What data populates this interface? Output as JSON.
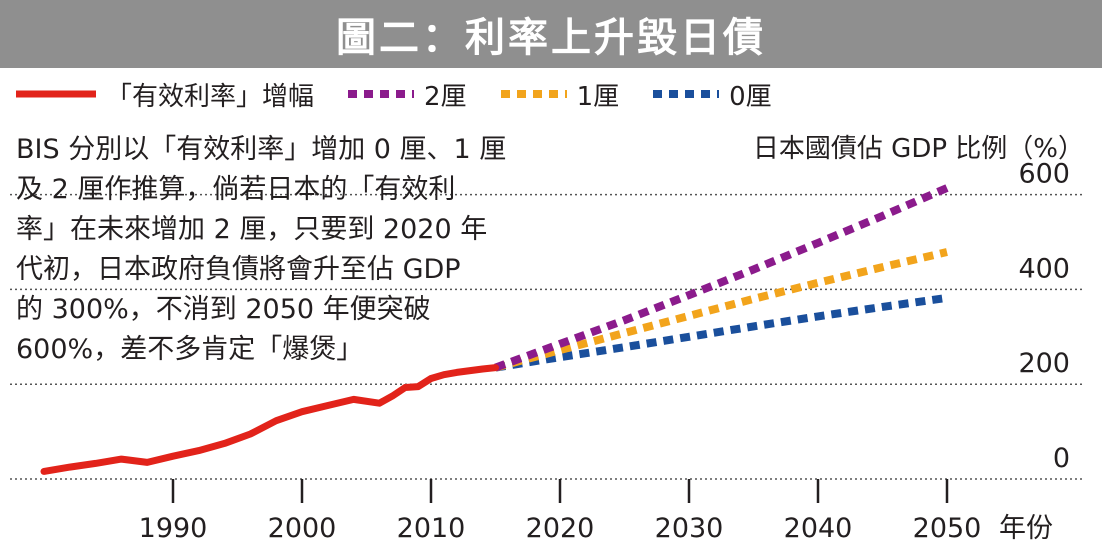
{
  "chart_data": {
    "type": "line",
    "title": "圖二：利率上升毀日債",
    "ylabel": "日本國債佔 GDP 比例（%）",
    "xlabel": "年份",
    "xlim": [
      1980,
      2050
    ],
    "ylim": [
      0,
      600
    ],
    "x_ticks": [
      1990,
      2000,
      2010,
      2020,
      2030,
      2040,
      2050
    ],
    "x_tick_labels": [
      "1990",
      "2000",
      "2010",
      "2020",
      "2030",
      "2040",
      "2050"
    ],
    "y_ticks": [
      0,
      200,
      400,
      600
    ],
    "y_tick_labels": [
      "0",
      "200",
      "400",
      "600"
    ],
    "series": [
      {
        "name": "「有效利率」增幅",
        "color": "#e2231a",
        "style": "solid",
        "x": [
          1980,
          1982,
          1984,
          1986,
          1988,
          1990,
          1992,
          1994,
          1996,
          1998,
          2000,
          2002,
          2004,
          2006,
          2007,
          2008,
          2009,
          2010,
          2011,
          2012,
          2014,
          2015
        ],
        "values": [
          16,
          25,
          33,
          42,
          35,
          48,
          60,
          75,
          95,
          123,
          142,
          155,
          168,
          160,
          175,
          193,
          195,
          212,
          220,
          225,
          232,
          235
        ]
      },
      {
        "name": "2厘",
        "color": "#8b1b8c",
        "style": "dotted",
        "x": [
          2015,
          2020,
          2025,
          2030,
          2035,
          2040,
          2045,
          2050
        ],
        "values": [
          235,
          285,
          335,
          388,
          442,
          498,
          555,
          614
        ]
      },
      {
        "name": "1厘",
        "color": "#f2a41c",
        "style": "dotted",
        "x": [
          2015,
          2020,
          2025,
          2030,
          2035,
          2040,
          2045,
          2050
        ],
        "values": [
          235,
          272,
          308,
          344,
          380,
          414,
          447,
          479
        ]
      },
      {
        "name": "0厘",
        "color": "#1a4f9c",
        "style": "dotted",
        "x": [
          2015,
          2020,
          2025,
          2030,
          2035,
          2040,
          2045,
          2050
        ],
        "values": [
          235,
          257,
          278,
          300,
          322,
          343,
          363,
          382
        ]
      }
    ],
    "annotation": [
      "BIS 分別以「有效利率」增加 0 厘、1 厘",
      "及 2 厘作推算，倘若日本的「有效利",
      "率」在未來增加 2 厘，只要到 2020 年",
      "代初，日本政府負債將會升至佔 GDP",
      "的 300%，不消到 2050 年便突破",
      "600%，差不多肯定「爆煲」"
    ],
    "legend_position": "top-left",
    "grid": "horizontal-dotted"
  }
}
